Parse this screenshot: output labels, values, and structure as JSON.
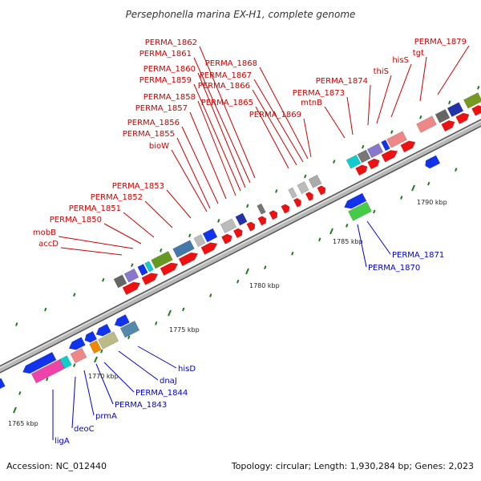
{
  "title": "Persephonella marina EX-H1, complete genome",
  "footer": {
    "accession": "Accession: NC_012440",
    "summary": "Topology: circular; Length: 1,930,284 bp; Genes: 2,023"
  },
  "colors": {
    "top_labels": "#cc0000",
    "bottom_labels": "#0000cc",
    "forward_genes": "#ee1111",
    "reverse_genes": "#1133ee",
    "backbone": "#999999"
  },
  "scale": {
    "unit": "kbp",
    "ticks": [
      "1765 kbp",
      "1770 kbp",
      "1775 kbp",
      "1780 kbp",
      "1785 kbp",
      "1790 kbp"
    ]
  },
  "top_labels": [
    "PERMA_1862",
    "PERMA_1861",
    "PERMA_1860",
    "PERMA_1859",
    "PERMA_1858",
    "PERMA_1857",
    "PERMA_1856",
    "PERMA_1855",
    "bioW",
    "PERMA_1868",
    "PERMA_1867",
    "PERMA_1866",
    "PERMA_1865",
    "PERMA_1869",
    "PERMA_1853",
    "PERMA_1852",
    "PERMA_1851",
    "PERMA_1850",
    "mobB",
    "accD",
    "PERMA_1874",
    "PERMA_1873",
    "mtnB",
    "thiS",
    "hisS",
    "tgt",
    "PERMA_1879"
  ],
  "bottom_labels": [
    "hisD",
    "dnaJ",
    "PERMA_1844",
    "PERMA_1843",
    "prmA",
    "deoC",
    "ligA",
    "PERMA_1871",
    "PERMA_1870"
  ]
}
